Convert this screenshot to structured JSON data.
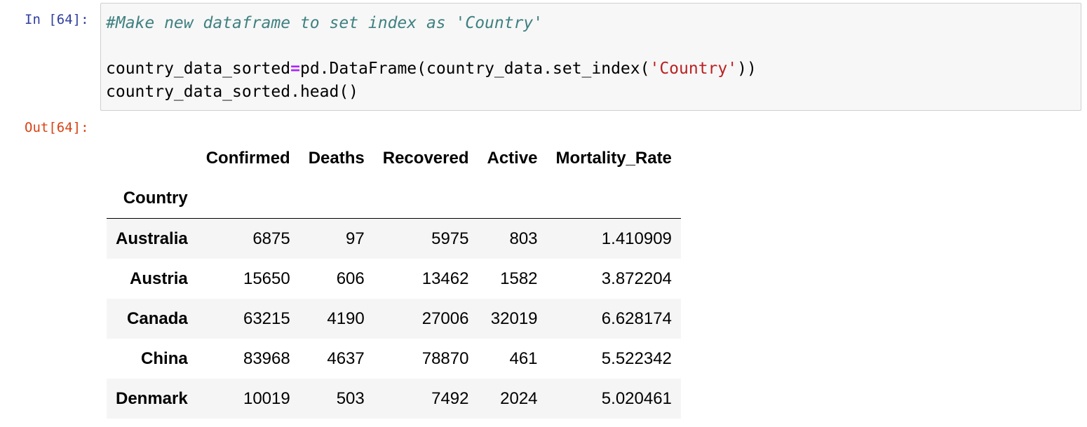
{
  "input_prompt": "In [64]:",
  "output_prompt": "Out[64]:",
  "code": {
    "comment": "#Make new dataframe to set index as 'Country'",
    "line2_prefix": "country_data_sorted",
    "line2_operator": "=",
    "line2_call": "pd.DataFrame(country_data.set_index(",
    "line2_string": "'Country'",
    "line2_suffix": "))",
    "line3": "country_data_sorted.head()"
  },
  "dataframe": {
    "columns": [
      "Confirmed",
      "Deaths",
      "Recovered",
      "Active",
      "Mortality_Rate"
    ],
    "index_name": "Country",
    "rows": [
      {
        "index": "Australia",
        "values": [
          "6875",
          "97",
          "5975",
          "803",
          "1.410909"
        ]
      },
      {
        "index": "Austria",
        "values": [
          "15650",
          "606",
          "13462",
          "1582",
          "3.872204"
        ]
      },
      {
        "index": "Canada",
        "values": [
          "63215",
          "4190",
          "27006",
          "32019",
          "6.628174"
        ]
      },
      {
        "index": "China",
        "values": [
          "83968",
          "4637",
          "78870",
          "461",
          "5.522342"
        ]
      },
      {
        "index": "Denmark",
        "values": [
          "10019",
          "503",
          "7492",
          "2024",
          "5.020461"
        ]
      }
    ]
  },
  "colors": {
    "input_prompt": "#303f9f",
    "output_prompt": "#d84315",
    "comment": "#408080",
    "operator": "#aa22ff",
    "string": "#ba2121",
    "input_background": "#f7f7f7",
    "row_stripe": "#f5f5f5"
  }
}
